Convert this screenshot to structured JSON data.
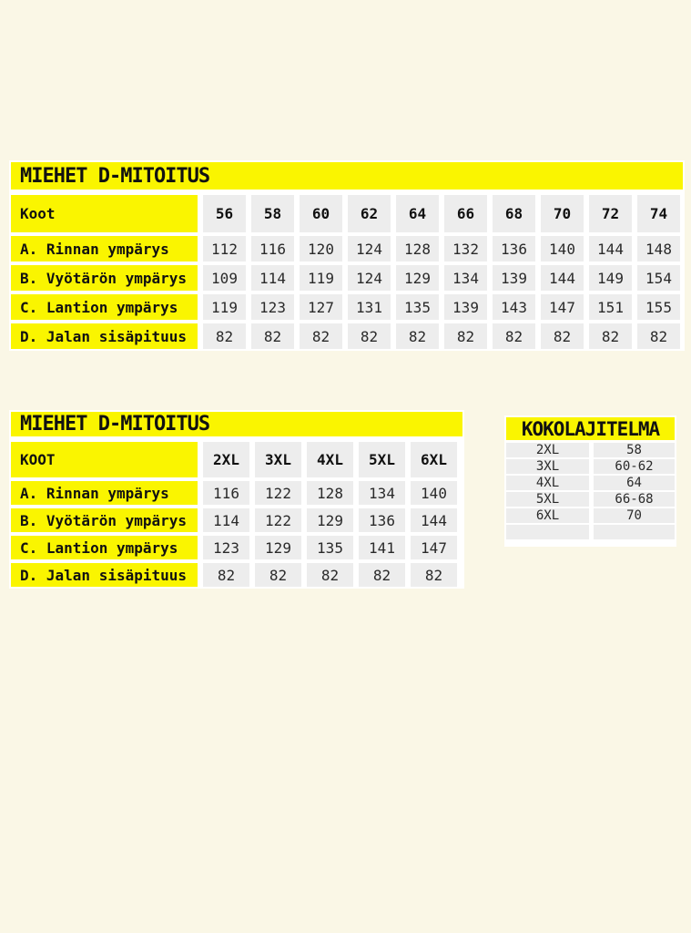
{
  "colors": {
    "accent_yellow": "#faf500",
    "page_cream": "#faf7e6",
    "cell_gray": "#ededed",
    "text_black": "#111111"
  },
  "table1": {
    "title": "MIEHET D-MITOITUS",
    "header": {
      "label": "Koot",
      "sizes": [
        "56",
        "58",
        "60",
        "62",
        "64",
        "66",
        "68",
        "70",
        "72",
        "74"
      ]
    },
    "rows": [
      {
        "label": "A. Rinnan ympärys",
        "values": [
          "112",
          "116",
          "120",
          "124",
          "128",
          "132",
          "136",
          "140",
          "144",
          "148"
        ]
      },
      {
        "label": "B. Vyötärön ympärys",
        "values": [
          "109",
          "114",
          "119",
          "124",
          "129",
          "134",
          "139",
          "144",
          "149",
          "154"
        ]
      },
      {
        "label": "C. Lantion ympärys",
        "values": [
          "119",
          "123",
          "127",
          "131",
          "135",
          "139",
          "143",
          "147",
          "151",
          "155"
        ]
      },
      {
        "label": "D. Jalan sisäpituus",
        "values": [
          "82",
          "82",
          "82",
          "82",
          "82",
          "82",
          "82",
          "82",
          "82",
          "82"
        ]
      }
    ]
  },
  "table2": {
    "title": "MIEHET D-MITOITUS",
    "header": {
      "label": "KOOT",
      "sizes": [
        "2XL",
        "3XL",
        "4XL",
        "5XL",
        "6XL"
      ]
    },
    "rows": [
      {
        "label": "A. Rinnan ympärys",
        "values": [
          "116",
          "122",
          "128",
          "134",
          "140"
        ]
      },
      {
        "label": "B. Vyötärön ympärys",
        "values": [
          "114",
          "122",
          "129",
          "136",
          "144"
        ]
      },
      {
        "label": "C. Lantion ympärys",
        "values": [
          "123",
          "129",
          "135",
          "141",
          "147"
        ]
      },
      {
        "label": "D. Jalan sisäpituus",
        "values": [
          "82",
          "82",
          "82",
          "82",
          "82"
        ]
      }
    ]
  },
  "table3": {
    "title": "KOKOLAJITELMA",
    "rows": [
      {
        "size": "2XL",
        "range": "58"
      },
      {
        "size": "3XL",
        "range": "60-62"
      },
      {
        "size": "4XL",
        "range": "64"
      },
      {
        "size": "5XL",
        "range": "66-68"
      },
      {
        "size": "6XL",
        "range": "70"
      },
      {
        "size": "",
        "range": ""
      }
    ]
  }
}
